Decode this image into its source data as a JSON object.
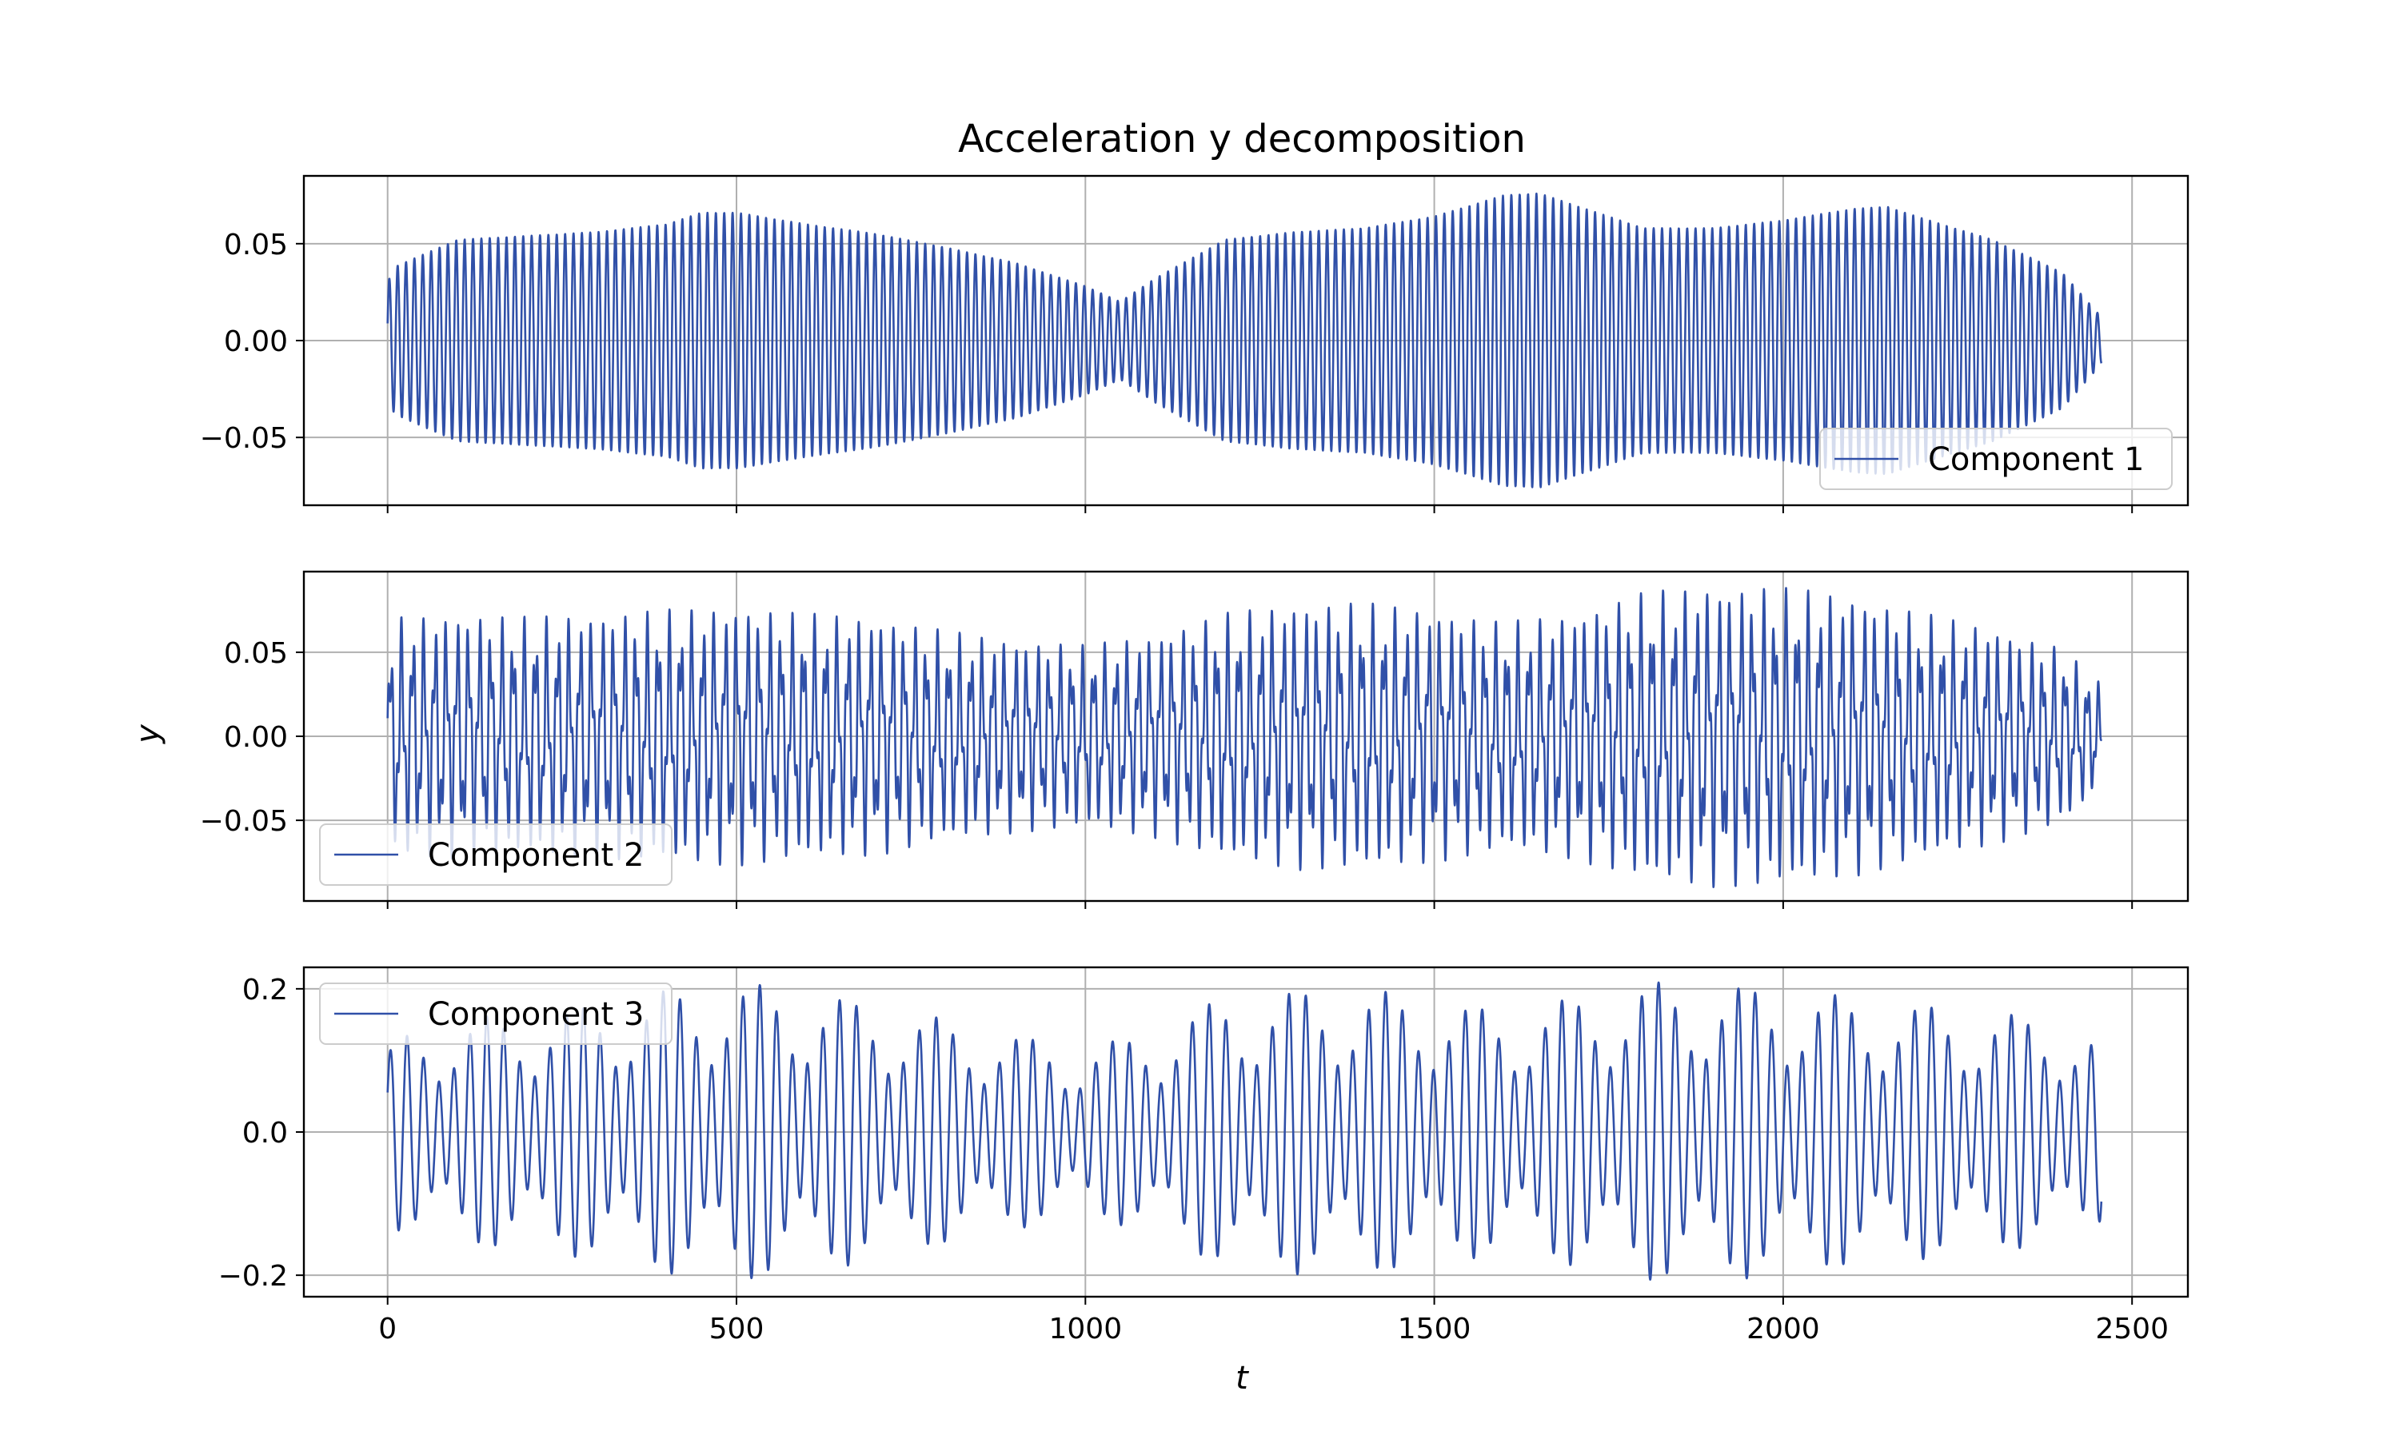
{
  "chart_data": {
    "type": "line",
    "title": "Acceleration y decomposition",
    "xlabel": "t",
    "ylabel": "y",
    "xlim": [
      -120,
      2580
    ],
    "x_ticks": [
      0,
      500,
      1000,
      1500,
      2000,
      2500
    ],
    "x_tick_labels": [
      "0",
      "500",
      "1000",
      "1500",
      "2000",
      "2500"
    ],
    "grid": true,
    "colors": {
      "line": "#3050a8",
      "grid": "#b0b0b0",
      "axes": "#000000"
    },
    "x_range_data": [
      0,
      2456
    ],
    "panels": [
      {
        "name": "Component 1",
        "ylim": [
          -0.085,
          0.085
        ],
        "y_ticks": [
          -0.05,
          0.0,
          0.05
        ],
        "y_tick_labels": [
          "−0.05",
          "0.00",
          "0.05"
        ],
        "legend_loc": "lower-right",
        "carrier_period": 12,
        "envelope_t": [
          0,
          10,
          100,
          200,
          300,
          400,
          450,
          500,
          600,
          700,
          800,
          900,
          1000,
          1050,
          1100,
          1200,
          1300,
          1400,
          1500,
          1600,
          1650,
          1700,
          1800,
          1900,
          2000,
          2100,
          2150,
          2200,
          2300,
          2400,
          2456
        ],
        "envelope_amp": [
          0.03,
          0.038,
          0.052,
          0.054,
          0.056,
          0.06,
          0.066,
          0.066,
          0.06,
          0.055,
          0.048,
          0.04,
          0.028,
          0.02,
          0.032,
          0.052,
          0.056,
          0.058,
          0.064,
          0.075,
          0.076,
          0.07,
          0.058,
          0.058,
          0.062,
          0.068,
          0.069,
          0.063,
          0.052,
          0.035,
          0.012
        ]
      },
      {
        "name": "Component 2",
        "ylim": [
          -0.098,
          0.098
        ],
        "y_ticks": [
          -0.05,
          0.0,
          0.05
        ],
        "y_tick_labels": [
          "−0.05",
          "0.00",
          "0.05"
        ],
        "legend_loc": "lower-left",
        "carrier_period": 16,
        "sub_period": 6.3,
        "envelope_t": [
          0,
          10,
          100,
          200,
          300,
          400,
          500,
          600,
          700,
          800,
          900,
          1000,
          1100,
          1200,
          1300,
          1400,
          1500,
          1600,
          1700,
          1800,
          1900,
          2000,
          2100,
          2200,
          2300,
          2400,
          2456
        ],
        "envelope_amp": [
          0.045,
          0.068,
          0.07,
          0.068,
          0.07,
          0.072,
          0.074,
          0.07,
          0.068,
          0.06,
          0.055,
          0.052,
          0.058,
          0.07,
          0.076,
          0.076,
          0.072,
          0.065,
          0.07,
          0.082,
          0.086,
          0.085,
          0.08,
          0.07,
          0.062,
          0.05,
          0.03
        ]
      },
      {
        "name": "Component 3",
        "ylim": [
          -0.23,
          0.23
        ],
        "y_ticks": [
          -0.2,
          0.0,
          0.2
        ],
        "y_tick_labels": [
          "−0.2",
          "0.0",
          "0.2"
        ],
        "legend_loc": "upper-left",
        "carrier_period": 23,
        "sub_period": 28,
        "envelope_t": [
          0,
          10,
          100,
          200,
          300,
          400,
          500,
          600,
          700,
          800,
          900,
          1000,
          1100,
          1200,
          1300,
          1400,
          1500,
          1600,
          1700,
          1800,
          1900,
          2000,
          2100,
          2200,
          2300,
          2400,
          2456
        ],
        "envelope_amp": [
          0.1,
          0.13,
          0.15,
          0.16,
          0.17,
          0.19,
          0.2,
          0.19,
          0.17,
          0.15,
          0.13,
          0.11,
          0.14,
          0.18,
          0.19,
          0.19,
          0.18,
          0.16,
          0.18,
          0.2,
          0.2,
          0.19,
          0.18,
          0.17,
          0.16,
          0.15,
          0.12
        ]
      }
    ]
  }
}
